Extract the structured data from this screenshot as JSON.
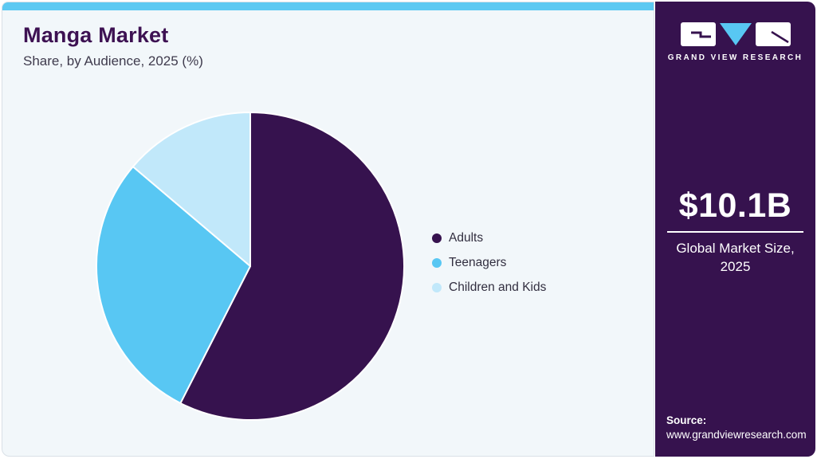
{
  "header": {
    "title": "Manga Market",
    "subtitle": "Share, by Audience, 2025 (%)"
  },
  "chart_data": {
    "type": "pie",
    "title": "Manga Market Share, by Audience, 2025 (%)",
    "categories": [
      "Adults",
      "Teenagers",
      "Children and Kids"
    ],
    "values": [
      57.5,
      28.7,
      13.8
    ],
    "colors": [
      "#36124E",
      "#58C7F3",
      "#C1E8FA"
    ],
    "start_angle_deg": 0,
    "direction": "clockwise",
    "legend_position": "right",
    "data_labels_shown": false,
    "values_estimated_from_angles": true
  },
  "sidebar": {
    "brand": "GRAND VIEW RESEARCH",
    "market_size_value": "$10.1B",
    "market_size_label": "Global Market Size, 2025",
    "source_label": "Source:",
    "source_url": "www.grandviewresearch.com"
  },
  "theme": {
    "accent_bar_color": "#5CC9F2",
    "panel_background": "#F2F7FA",
    "sidebar_background": "#36124E",
    "title_color": "#3D1152",
    "slice_divider_color": "#FFFFFF"
  }
}
